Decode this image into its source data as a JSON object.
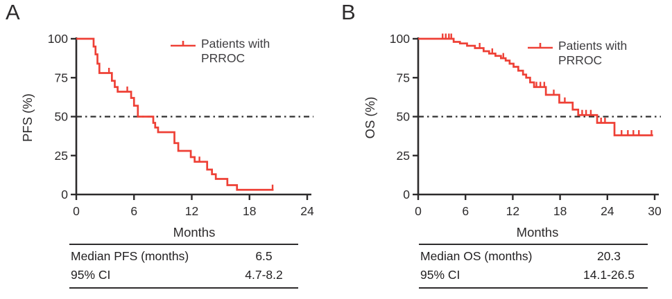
{
  "figure": {
    "background": "#ffffff"
  },
  "colors": {
    "curve": "#ee4036",
    "axis": "#2d2b2c",
    "text": "#2d2b2c",
    "legend_text": "#3e3d40",
    "reference_line": "#2f2f2f"
  },
  "panels": [
    {
      "label": "A",
      "y_axis_title": "PFS (%)",
      "x_axis_title": "Months",
      "legend_label": "Patients with PRROC",
      "stats": {
        "rows": [
          {
            "label": "Median PFS (months)",
            "value": "6.5"
          },
          {
            "label": "95% CI",
            "value": "4.7-8.2"
          }
        ]
      }
    },
    {
      "label": "B",
      "y_axis_title": "OS (%)",
      "x_axis_title": "Months",
      "legend_label": "Patients with PRROC",
      "stats": {
        "rows": [
          {
            "label": "Median OS (months)",
            "value": "20.3"
          },
          {
            "label": "95% CI",
            "value": "14.1-26.5"
          }
        ]
      }
    }
  ],
  "chart_data": [
    {
      "type": "line",
      "subtype": "kaplan_meier_step",
      "panel": "A",
      "title": "",
      "xlabel": "Months",
      "ylabel": "PFS (%)",
      "xlim": [
        0,
        24
      ],
      "ylim": [
        0,
        100
      ],
      "x_ticks": [
        0,
        6,
        12,
        18,
        24
      ],
      "y_ticks": [
        0,
        25,
        50,
        75,
        100
      ],
      "grid": false,
      "reference_line": {
        "y": 50,
        "style": "dash-dot"
      },
      "legend_position": "upper right",
      "median_months": 6.5,
      "ci_95": "4.7-8.2",
      "series": [
        {
          "name": "Patients with PRROC",
          "color": "#ee4036",
          "points": [
            [
              0,
              100
            ],
            [
              1.8,
              95
            ],
            [
              2.0,
              90
            ],
            [
              2.2,
              84
            ],
            [
              2.4,
              78
            ],
            [
              3.7,
              73
            ],
            [
              4.0,
              69
            ],
            [
              4.3,
              66
            ],
            [
              5.7,
              62
            ],
            [
              6.0,
              57
            ],
            [
              6.4,
              50
            ],
            [
              8.0,
              46
            ],
            [
              8.2,
              43
            ],
            [
              8.5,
              40
            ],
            [
              10.2,
              33
            ],
            [
              10.6,
              28
            ],
            [
              11.9,
              24
            ],
            [
              12.3,
              21
            ],
            [
              13.6,
              16
            ],
            [
              14.1,
              13
            ],
            [
              14.5,
              10
            ],
            [
              15.7,
              6
            ],
            [
              16.7,
              3
            ],
            [
              20.5,
              3
            ]
          ],
          "censor_marks": [
            [
              3.4,
              78
            ],
            [
              5.3,
              66
            ],
            [
              12.8,
              21
            ],
            [
              20.4,
              3
            ]
          ]
        }
      ]
    },
    {
      "type": "line",
      "subtype": "kaplan_meier_step",
      "panel": "B",
      "title": "",
      "xlabel": "Months",
      "ylabel": "OS (%)",
      "xlim": [
        0,
        30
      ],
      "ylim": [
        0,
        100
      ],
      "x_ticks": [
        0,
        6,
        12,
        18,
        24,
        30
      ],
      "y_ticks": [
        0,
        25,
        50,
        75,
        100
      ],
      "grid": false,
      "reference_line": {
        "y": 50,
        "style": "dash-dot"
      },
      "legend_position": "upper right",
      "median_months": 20.3,
      "ci_95": "14.1-26.5",
      "series": [
        {
          "name": "Patients with PRROC",
          "color": "#ee4036",
          "points": [
            [
              0,
              100
            ],
            [
              4.5,
              98
            ],
            [
              5.3,
              97
            ],
            [
              6.2,
              95.5
            ],
            [
              7.2,
              94
            ],
            [
              8.3,
              92
            ],
            [
              9.0,
              90.5
            ],
            [
              9.8,
              89
            ],
            [
              10.5,
              87.5
            ],
            [
              11.1,
              86
            ],
            [
              11.6,
              84
            ],
            [
              12.1,
              82
            ],
            [
              12.7,
              79.5
            ],
            [
              13.3,
              77
            ],
            [
              13.7,
              75
            ],
            [
              14.2,
              72
            ],
            [
              14.7,
              69
            ],
            [
              16.2,
              64
            ],
            [
              17.9,
              59
            ],
            [
              19.6,
              54.5
            ],
            [
              20.3,
              51
            ],
            [
              22.7,
              46
            ],
            [
              24.9,
              38
            ],
            [
              29.8,
              38
            ]
          ],
          "censor_marks": [
            [
              3.1,
              100
            ],
            [
              3.5,
              100
            ],
            [
              3.9,
              100
            ],
            [
              4.2,
              100
            ],
            [
              7.8,
              94
            ],
            [
              9.4,
              90.5
            ],
            [
              10.8,
              87.5
            ],
            [
              15.0,
              69
            ],
            [
              15.5,
              69
            ],
            [
              16.0,
              69
            ],
            [
              17.2,
              64
            ],
            [
              18.6,
              59
            ],
            [
              20.8,
              51
            ],
            [
              21.3,
              51
            ],
            [
              21.9,
              51
            ],
            [
              23.2,
              46
            ],
            [
              23.7,
              46
            ],
            [
              25.8,
              38
            ],
            [
              26.6,
              38
            ],
            [
              27.3,
              38
            ],
            [
              28.0,
              38
            ],
            [
              29.6,
              38
            ]
          ]
        }
      ]
    }
  ]
}
